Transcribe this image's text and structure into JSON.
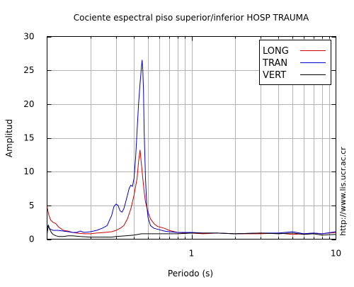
{
  "chart_data": {
    "type": "line",
    "title": "Cociente espectral piso superior/inferior  HOSP TRAUMA",
    "xlabel": "Periodo (s)",
    "ylabel": "Amplitud",
    "x_scale": "log",
    "xlim": [
      0.1,
      10
    ],
    "ylim": [
      0,
      30
    ],
    "x_ticks": [
      {
        "value": 1,
        "label": "1"
      },
      {
        "value": 10,
        "label": "10"
      }
    ],
    "y_ticks": [
      {
        "value": 0,
        "label": "0"
      },
      {
        "value": 5,
        "label": "5"
      },
      {
        "value": 10,
        "label": "10"
      },
      {
        "value": 15,
        "label": "15"
      },
      {
        "value": 20,
        "label": "20"
      },
      {
        "value": 25,
        "label": "25"
      },
      {
        "value": 30,
        "label": "30"
      }
    ],
    "grid": true,
    "legend_position": "top-right",
    "credit": "http://www.lis.ucr.ac.cr",
    "series": [
      {
        "name": "LONG",
        "color": "#cc0000",
        "x": [
          0.1,
          0.103,
          0.106,
          0.11,
          0.115,
          0.12,
          0.13,
          0.14,
          0.15,
          0.16,
          0.18,
          0.2,
          0.22,
          0.25,
          0.28,
          0.3,
          0.32,
          0.34,
          0.36,
          0.38,
          0.4,
          0.42,
          0.43,
          0.44,
          0.45,
          0.46,
          0.47,
          0.48,
          0.5,
          0.52,
          0.55,
          0.58,
          0.6,
          0.65,
          0.7,
          0.8,
          0.9,
          1,
          1.2,
          1.5,
          2,
          2.5,
          3,
          4,
          5,
          6,
          7,
          8,
          9,
          10
        ],
        "y": [
          4.8,
          3.5,
          2.8,
          2.5,
          2.3,
          1.8,
          1.3,
          1.2,
          1.0,
          0.9,
          0.8,
          0.8,
          0.9,
          1.0,
          1.1,
          1.3,
          1.6,
          2.0,
          3.0,
          4.5,
          6.5,
          9.0,
          11.5,
          13.2,
          11.0,
          9.0,
          7.0,
          5.5,
          4.0,
          3.0,
          2.3,
          1.9,
          1.8,
          1.6,
          1.3,
          1.0,
          0.9,
          0.9,
          0.8,
          0.9,
          0.8,
          0.8,
          0.8,
          0.9,
          0.7,
          0.8,
          0.9,
          0.8,
          0.9,
          1.0
        ]
      },
      {
        "name": "TRAN",
        "color": "#0000cc",
        "x": [
          0.1,
          0.105,
          0.11,
          0.12,
          0.13,
          0.14,
          0.15,
          0.16,
          0.17,
          0.18,
          0.2,
          0.22,
          0.24,
          0.26,
          0.28,
          0.29,
          0.3,
          0.31,
          0.32,
          0.33,
          0.34,
          0.35,
          0.36,
          0.37,
          0.38,
          0.39,
          0.4,
          0.41,
          0.42,
          0.43,
          0.44,
          0.45,
          0.455,
          0.46,
          0.465,
          0.47,
          0.48,
          0.49,
          0.5,
          0.52,
          0.55,
          0.6,
          0.65,
          0.7,
          0.8,
          1,
          1.2,
          1.5,
          2,
          3,
          4,
          5,
          6,
          7,
          8,
          10
        ],
        "y": [
          2.0,
          1.5,
          1.3,
          1.3,
          1.2,
          1.1,
          1.0,
          1.0,
          1.2,
          1.0,
          1.1,
          1.3,
          1.6,
          2.0,
          3.5,
          4.8,
          5.2,
          5.0,
          4.2,
          4.0,
          4.5,
          5.5,
          6.5,
          7.5,
          8.0,
          7.8,
          9.0,
          12.0,
          16.0,
          20.0,
          23.0,
          25.5,
          26.5,
          25.0,
          22.0,
          16.0,
          9.0,
          5.0,
          3.2,
          2.0,
          1.6,
          1.4,
          1.2,
          1.1,
          1.0,
          1.0,
          0.9,
          0.9,
          0.8,
          0.9,
          0.9,
          1.1,
          0.8,
          0.9,
          0.8,
          1.1
        ]
      },
      {
        "name": "VERT",
        "color": "#000000",
        "x": [
          0.1,
          0.102,
          0.104,
          0.107,
          0.11,
          0.115,
          0.12,
          0.13,
          0.14,
          0.15,
          0.17,
          0.2,
          0.22,
          0.25,
          0.28,
          0.3,
          0.35,
          0.4,
          0.45,
          0.5,
          0.6,
          0.7,
          0.8,
          1,
          1.5,
          2,
          3,
          4,
          5,
          6,
          7,
          8,
          10
        ],
        "y": [
          0.8,
          2.1,
          1.5,
          1.0,
          0.7,
          0.5,
          0.4,
          0.4,
          0.5,
          0.5,
          0.4,
          0.3,
          0.3,
          0.3,
          0.3,
          0.4,
          0.5,
          0.6,
          0.8,
          0.8,
          0.8,
          0.8,
          0.8,
          0.9,
          0.9,
          0.8,
          0.9,
          0.8,
          0.9,
          0.7,
          0.8,
          0.6,
          0.7
        ]
      }
    ]
  }
}
